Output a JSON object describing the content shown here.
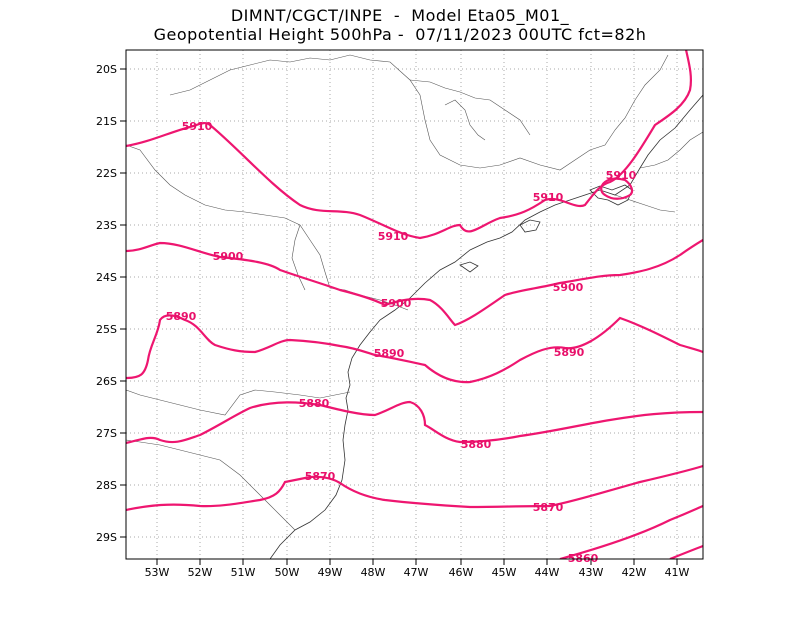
{
  "header": {
    "line1": "DIMNT/CGCT/INPE  -  Model Eta05_M01_",
    "line2": "Geopotential Height 500hPa -  07/11/2023 00UTC fct=82h"
  },
  "axes": {
    "lat_labels": [
      "20S",
      "21S",
      "22S",
      "23S",
      "24S",
      "25S",
      "26S",
      "27S",
      "28S",
      "29S"
    ],
    "lon_labels": [
      "53W",
      "52W",
      "51W",
      "50W",
      "49W",
      "48W",
      "47W",
      "46W",
      "45W",
      "44W",
      "43W",
      "42W",
      "41W"
    ]
  },
  "contour_labels": {
    "c5910_a": "5910",
    "c5910_b": "5910",
    "c5910_c": "5910",
    "c5910_d": "5910",
    "c5900_a": "5900",
    "c5900_b": "5900",
    "c5900_c": "5900",
    "c5890_a": "5890",
    "c5890_b": "5890",
    "c5890_c": "5890",
    "c5880_a": "5880",
    "c5880_b": "5880",
    "c5870_a": "5870",
    "c5870_b": "5870",
    "c5860_a": "5860"
  },
  "colors": {
    "contour": "#ee1670",
    "coastline": "#333333",
    "grid": "#aaaaaa"
  }
}
